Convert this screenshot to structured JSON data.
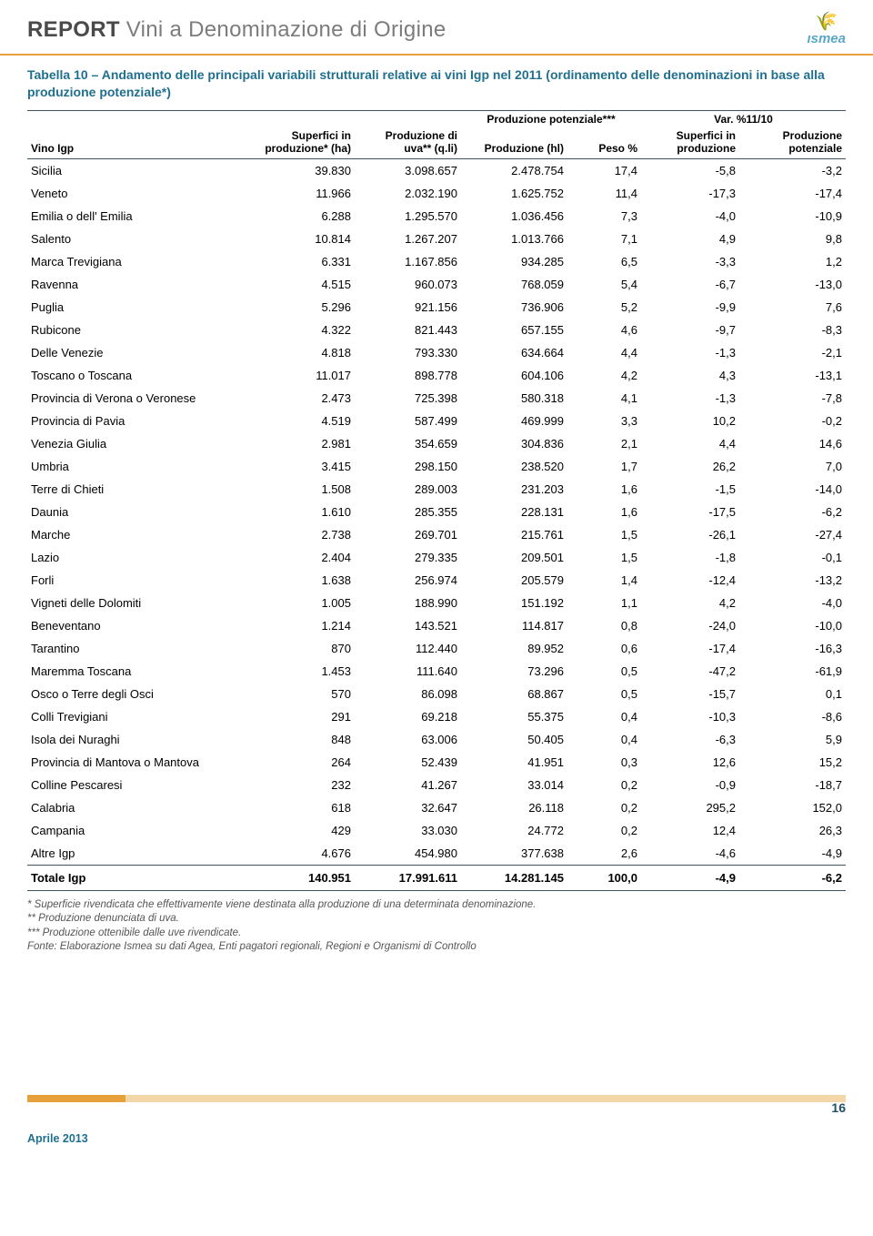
{
  "header": {
    "title_bold": "REPORT",
    "title_light": "Vini a Denominazione di Origine",
    "logo_text": "ısmea"
  },
  "table_title": "Tabella 10 – Andamento delle principali variabili strutturali relative ai vini Igp nel 2011 (ordinamento delle denominazioni in base alla produzione potenziale*)",
  "columns": {
    "vino": "Vino Igp",
    "group1_top": "Produzione potenziale***",
    "group2_top": "Var. %11/10",
    "superfici": "Superfici in produzione* (ha)",
    "prod_uva": "Produzione di uva** (q.li)",
    "produzione_hl": "Produzione (hl)",
    "peso": "Peso %",
    "var_superfici": "Superfici in produzione",
    "var_prod": "Produzione potenziale"
  },
  "rows": [
    {
      "vino": "Sicilia",
      "sup": "39.830",
      "uva": "3.098.657",
      "prod": "2.478.754",
      "peso": "17,4",
      "vs": "-5,8",
      "vp": "-3,2"
    },
    {
      "vino": "Veneto",
      "sup": "11.966",
      "uva": "2.032.190",
      "prod": "1.625.752",
      "peso": "11,4",
      "vs": "-17,3",
      "vp": "-17,4"
    },
    {
      "vino": "Emilia o dell' Emilia",
      "sup": "6.288",
      "uva": "1.295.570",
      "prod": "1.036.456",
      "peso": "7,3",
      "vs": "-4,0",
      "vp": "-10,9"
    },
    {
      "vino": "Salento",
      "sup": "10.814",
      "uva": "1.267.207",
      "prod": "1.013.766",
      "peso": "7,1",
      "vs": "4,9",
      "vp": "9,8"
    },
    {
      "vino": "Marca Trevigiana",
      "sup": "6.331",
      "uva": "1.167.856",
      "prod": "934.285",
      "peso": "6,5",
      "vs": "-3,3",
      "vp": "1,2"
    },
    {
      "vino": "Ravenna",
      "sup": "4.515",
      "uva": "960.073",
      "prod": "768.059",
      "peso": "5,4",
      "vs": "-6,7",
      "vp": "-13,0"
    },
    {
      "vino": "Puglia",
      "sup": "5.296",
      "uva": "921.156",
      "prod": "736.906",
      "peso": "5,2",
      "vs": "-9,9",
      "vp": "7,6"
    },
    {
      "vino": "Rubicone",
      "sup": "4.322",
      "uva": "821.443",
      "prod": "657.155",
      "peso": "4,6",
      "vs": "-9,7",
      "vp": "-8,3"
    },
    {
      "vino": "Delle Venezie",
      "sup": "4.818",
      "uva": "793.330",
      "prod": "634.664",
      "peso": "4,4",
      "vs": "-1,3",
      "vp": "-2,1"
    },
    {
      "vino": "Toscano o Toscana",
      "sup": "11.017",
      "uva": "898.778",
      "prod": "604.106",
      "peso": "4,2",
      "vs": "4,3",
      "vp": "-13,1"
    },
    {
      "vino": "Provincia di Verona o Veronese",
      "sup": "2.473",
      "uva": "725.398",
      "prod": "580.318",
      "peso": "4,1",
      "vs": "-1,3",
      "vp": "-7,8"
    },
    {
      "vino": "Provincia di Pavia",
      "sup": "4.519",
      "uva": "587.499",
      "prod": "469.999",
      "peso": "3,3",
      "vs": "10,2",
      "vp": "-0,2"
    },
    {
      "vino": "Venezia Giulia",
      "sup": "2.981",
      "uva": "354.659",
      "prod": "304.836",
      "peso": "2,1",
      "vs": "4,4",
      "vp": "14,6"
    },
    {
      "vino": "Umbria",
      "sup": "3.415",
      "uva": "298.150",
      "prod": "238.520",
      "peso": "1,7",
      "vs": "26,2",
      "vp": "7,0"
    },
    {
      "vino": "Terre di Chieti",
      "sup": "1.508",
      "uva": "289.003",
      "prod": "231.203",
      "peso": "1,6",
      "vs": "-1,5",
      "vp": "-14,0"
    },
    {
      "vino": "Daunia",
      "sup": "1.610",
      "uva": "285.355",
      "prod": "228.131",
      "peso": "1,6",
      "vs": "-17,5",
      "vp": "-6,2"
    },
    {
      "vino": "Marche",
      "sup": "2.738",
      "uva": "269.701",
      "prod": "215.761",
      "peso": "1,5",
      "vs": "-26,1",
      "vp": "-27,4"
    },
    {
      "vino": "Lazio",
      "sup": "2.404",
      "uva": "279.335",
      "prod": "209.501",
      "peso": "1,5",
      "vs": "-1,8",
      "vp": "-0,1"
    },
    {
      "vino": "Forli",
      "sup": "1.638",
      "uva": "256.974",
      "prod": "205.579",
      "peso": "1,4",
      "vs": "-12,4",
      "vp": "-13,2"
    },
    {
      "vino": "Vigneti delle Dolomiti",
      "sup": "1.005",
      "uva": "188.990",
      "prod": "151.192",
      "peso": "1,1",
      "vs": "4,2",
      "vp": "-4,0"
    },
    {
      "vino": "Beneventano",
      "sup": "1.214",
      "uva": "143.521",
      "prod": "114.817",
      "peso": "0,8",
      "vs": "-24,0",
      "vp": "-10,0"
    },
    {
      "vino": "Tarantino",
      "sup": "870",
      "uva": "112.440",
      "prod": "89.952",
      "peso": "0,6",
      "vs": "-17,4",
      "vp": "-16,3"
    },
    {
      "vino": "Maremma Toscana",
      "sup": "1.453",
      "uva": "111.640",
      "prod": "73.296",
      "peso": "0,5",
      "vs": "-47,2",
      "vp": "-61,9"
    },
    {
      "vino": "Osco o Terre degli Osci",
      "sup": "570",
      "uva": "86.098",
      "prod": "68.867",
      "peso": "0,5",
      "vs": "-15,7",
      "vp": "0,1"
    },
    {
      "vino": "Colli Trevigiani",
      "sup": "291",
      "uva": "69.218",
      "prod": "55.375",
      "peso": "0,4",
      "vs": "-10,3",
      "vp": "-8,6"
    },
    {
      "vino": "Isola dei Nuraghi",
      "sup": "848",
      "uva": "63.006",
      "prod": "50.405",
      "peso": "0,4",
      "vs": "-6,3",
      "vp": "5,9"
    },
    {
      "vino": "Provincia di Mantova o Mantova",
      "sup": "264",
      "uva": "52.439",
      "prod": "41.951",
      "peso": "0,3",
      "vs": "12,6",
      "vp": "15,2"
    },
    {
      "vino": "Colline Pescaresi",
      "sup": "232",
      "uva": "41.267",
      "prod": "33.014",
      "peso": "0,2",
      "vs": "-0,9",
      "vp": "-18,7"
    },
    {
      "vino": "Calabria",
      "sup": "618",
      "uva": "32.647",
      "prod": "26.118",
      "peso": "0,2",
      "vs": "295,2",
      "vp": "152,0"
    },
    {
      "vino": "Campania",
      "sup": "429",
      "uva": "33.030",
      "prod": "24.772",
      "peso": "0,2",
      "vs": "12,4",
      "vp": "26,3"
    },
    {
      "vino": "Altre Igp",
      "sup": "4.676",
      "uva": "454.980",
      "prod": "377.638",
      "peso": "2,6",
      "vs": "-4,6",
      "vp": "-4,9"
    }
  ],
  "total": {
    "vino": "Totale Igp",
    "sup": "140.951",
    "uva": "17.991.611",
    "prod": "14.281.145",
    "peso": "100,0",
    "vs": "-4,9",
    "vp": "-6,2"
  },
  "footnotes": [
    "* Superficie rivendicata che effettivamente viene destinata alla produzione di una determinata denominazione.",
    "** Produzione denunciata di uva.",
    "*** Produzione ottenibile dalle uve rivendicate.",
    "Fonte: Elaborazione Ismea su dati Agea, Enti pagatori regionali, Regioni e Organismi di Controllo"
  ],
  "footer": {
    "date": "Aprile 2013",
    "page": "16"
  }
}
